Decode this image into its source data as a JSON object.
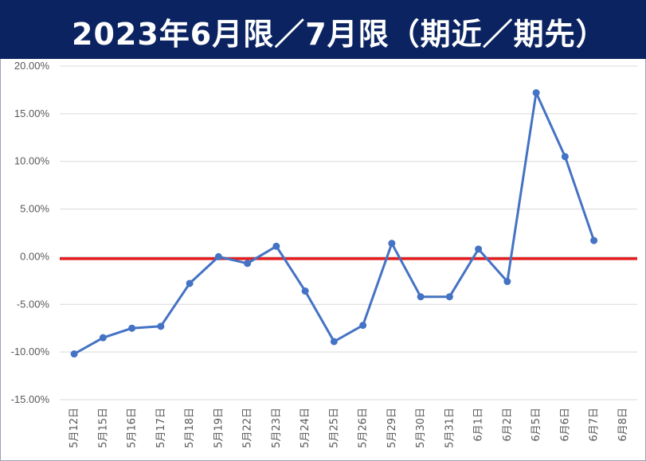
{
  "chart_data": {
    "type": "line",
    "title": "2023年6月限／7月限（期近／期先）",
    "categories": [
      "5月12日",
      "5月15日",
      "5月16日",
      "5月17日",
      "5月18日",
      "5月19日",
      "5月22日",
      "5月23日",
      "5月24日",
      "5月25日",
      "5月26日",
      "5月29日",
      "5月30日",
      "5月31日",
      "6月1日",
      "6月2日",
      "6月5日",
      "6月6日",
      "6月7日",
      "6月8日"
    ],
    "series": [
      {
        "values": [
          -10.2,
          -8.5,
          -7.5,
          -7.3,
          -2.8,
          0.0,
          -0.7,
          1.1,
          -3.6,
          -8.9,
          -7.2,
          1.4,
          -4.2,
          -4.2,
          0.8,
          -2.6,
          17.2,
          10.5,
          1.7,
          null
        ],
        "color": "#4472c4"
      }
    ],
    "ylim": [
      -15,
      20
    ],
    "yticks": [
      20,
      15,
      10,
      5,
      0,
      -5,
      -10,
      -15
    ],
    "ytick_labels": [
      "20.00%",
      "15.00%",
      "10.00%",
      "5.00%",
      "0.00%",
      "-5.00%",
      "-10.00%",
      "-15.00%"
    ],
    "reference_line": {
      "value": -0.2,
      "color": "#e31a1c"
    },
    "grid": true,
    "xlabel": "",
    "ylabel": ""
  },
  "colors": {
    "title_background": "#0b2461",
    "title_text": "#ffffff",
    "gridline": "#d9d9d9"
  }
}
